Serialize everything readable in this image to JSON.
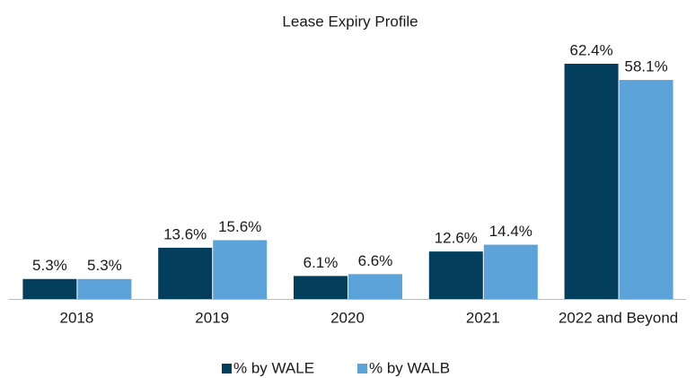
{
  "chart_data": {
    "type": "bar",
    "title": "Lease Expiry Profile",
    "categories": [
      "2018",
      "2019",
      "2020",
      "2021",
      "2022 and Beyond"
    ],
    "series": [
      {
        "name": "% by WALE",
        "color": "#033f5c",
        "values": [
          5.3,
          13.6,
          6.1,
          12.6,
          62.4
        ],
        "value_labels": [
          "5.3%",
          "13.6%",
          "6.1%",
          "12.6%",
          "62.4%"
        ]
      },
      {
        "name": "% by WALB",
        "color": "#5ba3d8",
        "values": [
          5.3,
          15.6,
          6.6,
          14.4,
          58.1
        ],
        "value_labels": [
          "5.3%",
          "15.6%",
          "6.6%",
          "14.4%",
          "58.1%"
        ]
      }
    ],
    "legend": "bottom"
  }
}
